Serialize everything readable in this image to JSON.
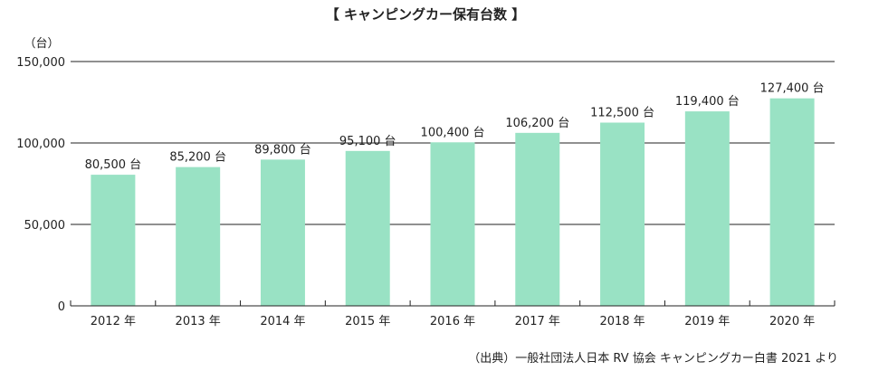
{
  "chart_data": {
    "type": "bar",
    "title": "【 キャンピングカー保有台数 】",
    "ylabel": "（台）",
    "xlabel": "",
    "categories": [
      "2012 年",
      "2013 年",
      "2014 年",
      "2015 年",
      "2016 年",
      "2017 年",
      "2018 年",
      "2019 年",
      "2020 年"
    ],
    "values": [
      80500,
      85200,
      89800,
      95100,
      100400,
      106200,
      112500,
      119400,
      127400
    ],
    "data_labels": [
      "80,500 台",
      "85,200 台",
      "89,800 台",
      "95,100 台",
      "100,400 台",
      "106,200 台",
      "112,500 台",
      "119,400 台",
      "127,400 台"
    ],
    "ylim": [
      0,
      150000
    ],
    "yticks": [
      0,
      50000,
      100000,
      150000
    ],
    "ytick_labels": [
      "0",
      "50,000",
      "100,000",
      "150,000"
    ],
    "grid": true,
    "bar_color": "#99e2c4",
    "source": "（出典）一般社団法人日本 RV 協会 キャンピングカー白書 2021 より"
  }
}
